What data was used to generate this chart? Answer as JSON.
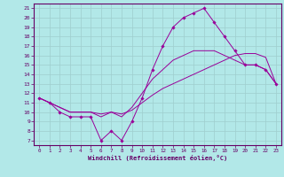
{
  "title": "",
  "xlabel": "Windchill (Refroidissement éolien,°C)",
  "background_color": "#b2e8e8",
  "grid_color": "#9ecece",
  "line_color": "#990099",
  "spine_color": "#660066",
  "tick_color": "#660066",
  "x_ticks": [
    0,
    1,
    2,
    3,
    4,
    5,
    6,
    7,
    8,
    9,
    10,
    11,
    12,
    13,
    14,
    15,
    16,
    17,
    18,
    19,
    20,
    21,
    22,
    23
  ],
  "y_ticks": [
    7,
    8,
    9,
    10,
    11,
    12,
    13,
    14,
    15,
    16,
    17,
    18,
    19,
    20,
    21
  ],
  "xlim": [
    -0.5,
    23.5
  ],
  "ylim": [
    6.5,
    21.5
  ],
  "series": [
    {
      "x": [
        0,
        1,
        2,
        3,
        4,
        5,
        6,
        7,
        8,
        9,
        10,
        11,
        12,
        13,
        14,
        15,
        16,
        17,
        18,
        19,
        20,
        21,
        22,
        23
      ],
      "y": [
        11.5,
        11.0,
        10.0,
        9.5,
        9.5,
        9.5,
        7.0,
        8.0,
        7.0,
        9.0,
        11.5,
        14.5,
        17.0,
        19.0,
        20.0,
        20.5,
        21.0,
        19.5,
        18.0,
        16.5,
        15.0,
        15.0,
        14.5,
        13.0
      ],
      "marker": "D",
      "markersize": 1.8,
      "lw": 0.7
    },
    {
      "x": [
        0,
        1,
        2,
        3,
        4,
        5,
        6,
        7,
        8,
        9,
        10,
        11,
        12,
        13,
        14,
        15,
        16,
        17,
        18,
        19,
        20,
        21,
        22,
        23
      ],
      "y": [
        11.5,
        11.0,
        10.5,
        10.0,
        10.0,
        10.0,
        9.5,
        10.0,
        9.5,
        10.5,
        12.0,
        13.5,
        14.5,
        15.5,
        16.0,
        16.5,
        16.5,
        16.5,
        16.0,
        15.5,
        15.0,
        15.0,
        14.5,
        13.0
      ],
      "marker": null,
      "markersize": 0,
      "lw": 0.7
    },
    {
      "x": [
        0,
        1,
        2,
        3,
        4,
        5,
        6,
        7,
        8,
        9,
        10,
        11,
        12,
        13,
        14,
        15,
        16,
        17,
        18,
        19,
        20,
        21,
        22,
        23
      ],
      "y": [
        11.5,
        11.0,
        10.5,
        10.0,
        10.0,
        10.0,
        9.8,
        10.0,
        9.8,
        10.2,
        11.0,
        11.8,
        12.5,
        13.0,
        13.5,
        14.0,
        14.5,
        15.0,
        15.5,
        16.0,
        16.2,
        16.2,
        15.8,
        13.0
      ],
      "marker": null,
      "markersize": 0,
      "lw": 0.7
    }
  ]
}
